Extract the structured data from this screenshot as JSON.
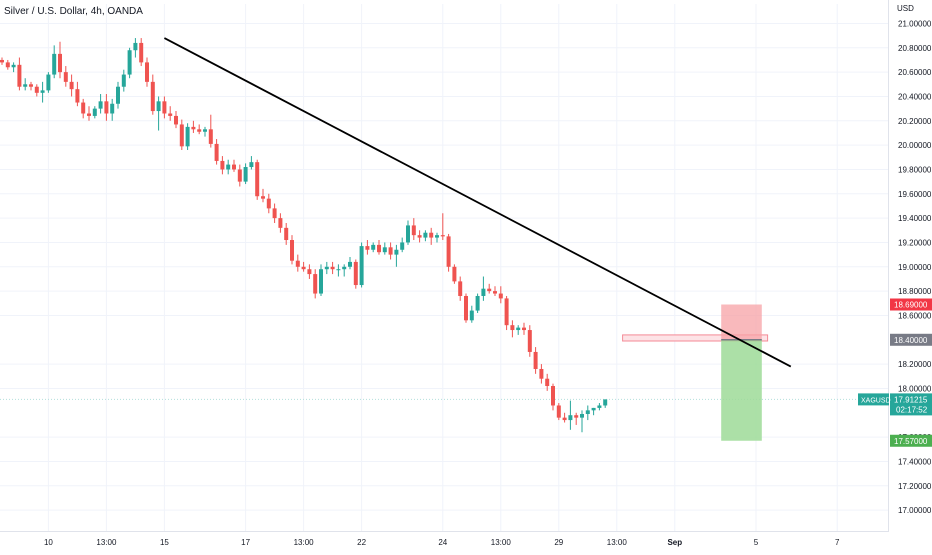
{
  "header": {
    "title": "Silver / U.S. Dollar, 4h, OANDA",
    "currency": "USD"
  },
  "chart_data": {
    "type": "candlestick",
    "title": "Silver / U.S. Dollar, 4h, OANDA",
    "y_unit": "USD",
    "ylim": [
      16.82,
      21.16
    ],
    "y_ticks": [
      "21.00000",
      "20.80000",
      "20.60000",
      "20.40000",
      "20.20000",
      "20.00000",
      "19.80000",
      "19.60000",
      "19.40000",
      "19.20000",
      "19.00000",
      "18.80000",
      "18.60000",
      "18.20000",
      "18.00000",
      "17.60000",
      "17.40000",
      "17.20000",
      "17.00000"
    ],
    "x_ticks": [
      {
        "label": "10",
        "bar": 8
      },
      {
        "label": "13:00",
        "bar": 18
      },
      {
        "label": "15",
        "bar": 28
      },
      {
        "label": "17",
        "bar": 42
      },
      {
        "label": "13:00",
        "bar": 52
      },
      {
        "label": "22",
        "bar": 62
      },
      {
        "label": "24",
        "bar": 76
      },
      {
        "label": "13:00",
        "bar": 86
      },
      {
        "label": "29",
        "bar": 96
      },
      {
        "label": "13:00",
        "bar": 106
      },
      {
        "label": "Sep",
        "bar": 116,
        "bold": true
      },
      {
        "label": "5",
        "bar": 130
      },
      {
        "label": "7",
        "bar": 144
      }
    ],
    "candles": [
      [
        20.7,
        20.72,
        20.66,
        20.68
      ],
      [
        20.68,
        20.7,
        20.62,
        20.64
      ],
      [
        20.64,
        20.68,
        20.6,
        20.66
      ],
      [
        20.66,
        20.72,
        20.45,
        20.48
      ],
      [
        20.48,
        20.55,
        20.45,
        20.5
      ],
      [
        20.5,
        20.52,
        20.45,
        20.48
      ],
      [
        20.48,
        20.5,
        20.4,
        20.43
      ],
      [
        20.43,
        20.52,
        20.35,
        20.45
      ],
      [
        20.45,
        20.6,
        20.43,
        20.58
      ],
      [
        20.58,
        20.82,
        20.55,
        20.75
      ],
      [
        20.75,
        20.85,
        20.55,
        20.6
      ],
      [
        20.6,
        20.65,
        20.48,
        20.52
      ],
      [
        20.52,
        20.58,
        20.4,
        20.46
      ],
      [
        20.46,
        20.52,
        20.32,
        20.35
      ],
      [
        20.35,
        20.38,
        20.22,
        20.26
      ],
      [
        20.26,
        20.32,
        20.2,
        20.24
      ],
      [
        20.24,
        20.32,
        20.22,
        20.3
      ],
      [
        20.3,
        20.42,
        20.26,
        20.36
      ],
      [
        20.36,
        20.42,
        20.2,
        20.26
      ],
      [
        20.26,
        20.38,
        20.2,
        20.34
      ],
      [
        20.34,
        20.52,
        20.3,
        20.48
      ],
      [
        20.48,
        20.62,
        20.44,
        20.58
      ],
      [
        20.58,
        20.8,
        20.55,
        20.78
      ],
      [
        20.78,
        20.88,
        20.72,
        20.84
      ],
      [
        20.84,
        20.88,
        20.65,
        20.68
      ],
      [
        20.68,
        20.72,
        20.48,
        20.52
      ],
      [
        20.52,
        20.58,
        20.25,
        20.28
      ],
      [
        20.28,
        20.4,
        20.12,
        20.36
      ],
      [
        20.36,
        20.4,
        20.22,
        20.26
      ],
      [
        20.26,
        20.32,
        20.2,
        20.24
      ],
      [
        20.24,
        20.28,
        20.14,
        20.17
      ],
      [
        20.17,
        20.21,
        19.96,
        19.99
      ],
      [
        19.99,
        20.18,
        19.96,
        20.15
      ],
      [
        20.15,
        20.2,
        20.1,
        20.13
      ],
      [
        20.13,
        20.17,
        20.09,
        20.11
      ],
      [
        20.11,
        20.15,
        20.07,
        20.13
      ],
      [
        20.13,
        20.25,
        19.98,
        20.01
      ],
      [
        20.01,
        20.05,
        19.84,
        19.87
      ],
      [
        19.87,
        19.91,
        19.76,
        19.8
      ],
      [
        19.8,
        19.88,
        19.76,
        19.84
      ],
      [
        19.84,
        19.88,
        19.78,
        19.8
      ],
      [
        19.8,
        19.84,
        19.66,
        19.7
      ],
      [
        19.7,
        19.85,
        19.68,
        19.82
      ],
      [
        19.82,
        19.91,
        19.8,
        19.86
      ],
      [
        19.86,
        19.88,
        19.55,
        19.58
      ],
      [
        19.58,
        19.64,
        19.53,
        19.56
      ],
      [
        19.56,
        19.6,
        19.44,
        19.48
      ],
      [
        19.48,
        19.52,
        19.36,
        19.4
      ],
      [
        19.4,
        19.44,
        19.28,
        19.32
      ],
      [
        19.32,
        19.36,
        19.18,
        19.22
      ],
      [
        19.22,
        19.26,
        19.02,
        19.05
      ],
      [
        19.05,
        19.1,
        18.96,
        19.0
      ],
      [
        19.0,
        19.04,
        18.96,
        18.98
      ],
      [
        18.98,
        19.02,
        18.9,
        18.94
      ],
      [
        18.94,
        18.98,
        18.74,
        18.78
      ],
      [
        18.78,
        19.02,
        18.76,
        18.98
      ],
      [
        18.98,
        19.04,
        18.94,
        19.0
      ],
      [
        19.0,
        19.04,
        18.94,
        18.98
      ],
      [
        18.98,
        19.02,
        18.92,
        18.98
      ],
      [
        18.98,
        19.02,
        18.92,
        19.0
      ],
      [
        19.0,
        19.08,
        18.98,
        19.04
      ],
      [
        19.04,
        19.06,
        18.82,
        18.85
      ],
      [
        18.85,
        19.2,
        18.83,
        19.17
      ],
      [
        19.17,
        19.22,
        19.1,
        19.14
      ],
      [
        19.14,
        19.2,
        19.12,
        19.18
      ],
      [
        19.18,
        19.22,
        19.1,
        19.12
      ],
      [
        19.12,
        19.2,
        19.1,
        19.16
      ],
      [
        19.16,
        19.2,
        19.06,
        19.1
      ],
      [
        19.1,
        19.18,
        19.0,
        19.14
      ],
      [
        19.14,
        19.24,
        19.12,
        19.2
      ],
      [
        19.2,
        19.38,
        19.18,
        19.34
      ],
      [
        19.34,
        19.4,
        19.22,
        19.26
      ],
      [
        19.26,
        19.3,
        19.2,
        19.24
      ],
      [
        19.24,
        19.3,
        19.21,
        19.28
      ],
      [
        19.28,
        19.32,
        19.18,
        19.24
      ],
      [
        19.24,
        19.28,
        19.2,
        19.26
      ],
      [
        19.26,
        19.44,
        19.22,
        19.25
      ],
      [
        19.25,
        19.27,
        18.96,
        19.0
      ],
      [
        19.0,
        19.02,
        18.86,
        18.88
      ],
      [
        18.88,
        18.92,
        18.72,
        18.76
      ],
      [
        18.76,
        18.78,
        18.54,
        18.56
      ],
      [
        18.56,
        18.68,
        18.54,
        18.64
      ],
      [
        18.64,
        18.78,
        18.62,
        18.76
      ],
      [
        18.76,
        18.92,
        18.72,
        18.82
      ],
      [
        18.82,
        18.86,
        18.78,
        18.8
      ],
      [
        18.8,
        18.84,
        18.76,
        18.78
      ],
      [
        18.78,
        18.84,
        18.7,
        18.74
      ],
      [
        18.74,
        18.76,
        18.48,
        18.52
      ],
      [
        18.52,
        18.56,
        18.42,
        18.48
      ],
      [
        18.48,
        18.52,
        18.44,
        18.5
      ],
      [
        18.5,
        18.54,
        18.44,
        18.48
      ],
      [
        18.48,
        18.52,
        18.26,
        18.3
      ],
      [
        18.3,
        18.34,
        18.12,
        18.16
      ],
      [
        18.16,
        18.2,
        18.04,
        18.08
      ],
      [
        18.08,
        18.12,
        17.98,
        18.02
      ],
      [
        18.02,
        18.04,
        17.82,
        17.86
      ],
      [
        17.86,
        17.88,
        17.74,
        17.76
      ],
      [
        17.76,
        17.8,
        17.72,
        17.74
      ],
      [
        17.74,
        17.9,
        17.66,
        17.78
      ],
      [
        17.78,
        17.8,
        17.7,
        17.76
      ],
      [
        17.76,
        17.82,
        17.64,
        17.79
      ],
      [
        17.79,
        17.86,
        17.74,
        17.82
      ],
      [
        17.82,
        17.84,
        17.78,
        17.84
      ],
      [
        17.84,
        17.88,
        17.82,
        17.86
      ],
      [
        17.86,
        17.91,
        17.84,
        17.91
      ]
    ],
    "trendline": {
      "from": {
        "bar": 28,
        "price": 20.88
      },
      "to": {
        "bar": 136,
        "price": 18.18
      }
    },
    "position": {
      "type": "short",
      "entry_price": 18.4,
      "stop_price": 18.69,
      "target_price": 17.57,
      "start_bar": 124,
      "end_bar": 131
    },
    "zone": {
      "top": 18.44,
      "bottom": 18.39,
      "start_bar": 107,
      "end_bar": 132
    },
    "current_price": 17.91215,
    "current_price_line": 17.91,
    "price_labels": {
      "stop": "18.69000",
      "entry": "18.40000",
      "target": "17.57000",
      "symbol": "XAGUSD",
      "current": "17.91215",
      "countdown": "02:17:52"
    }
  },
  "colors": {
    "up": "#26a69a",
    "down": "#ef5350",
    "axis_text": "#131722",
    "grid": "#f0f3fa",
    "trendline": "#000000",
    "stop_zone": "#f7a1a6",
    "target_zone": "#9edb98",
    "entry_label": "#787b86",
    "stop_label": "#f23645",
    "target_label": "#4caf50",
    "current_label": "#26a69a",
    "range_zone_fill": "#fde3e6",
    "range_zone_stroke": "#f48a96"
  }
}
